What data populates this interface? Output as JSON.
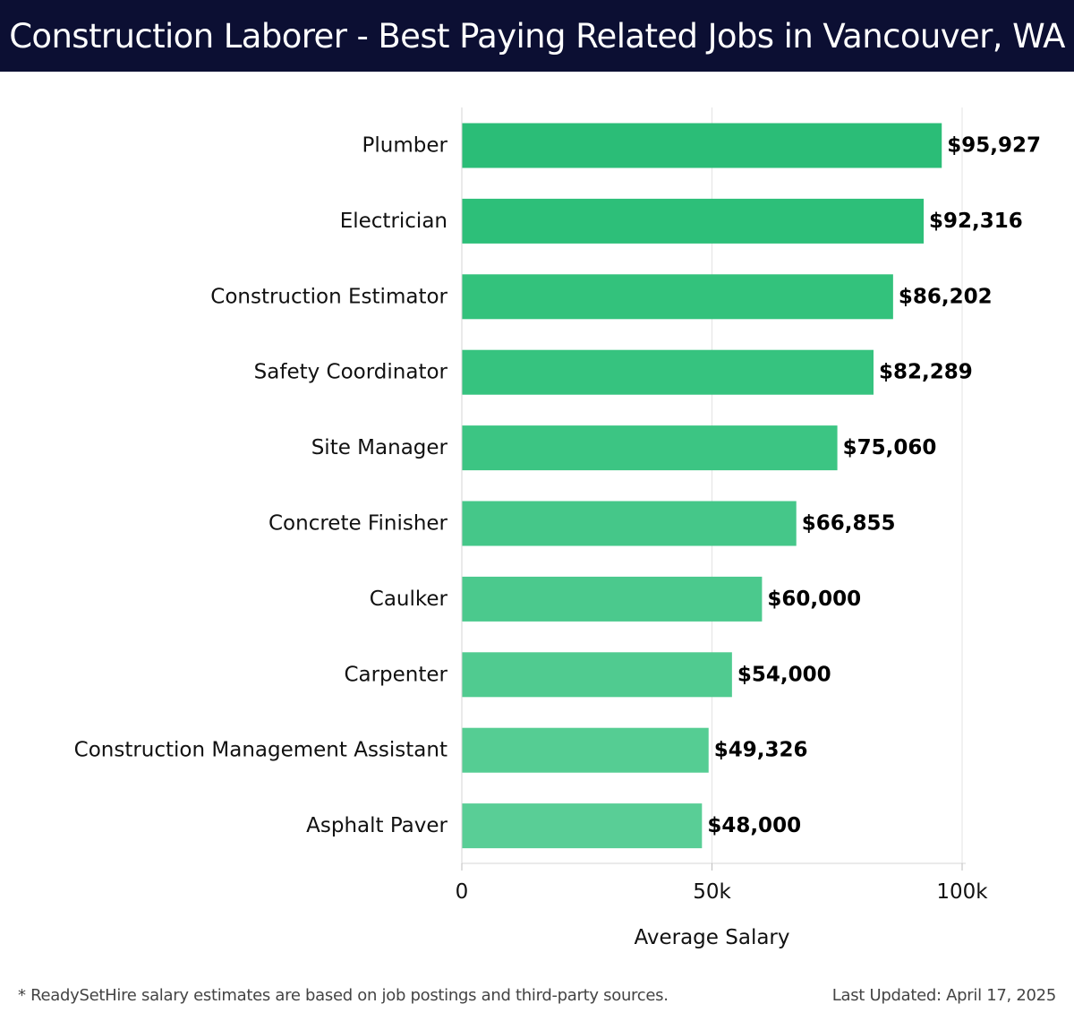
{
  "header": {
    "title": "Construction Laborer - Best Paying Related Jobs in Vancouver, WA"
  },
  "chart_data": {
    "type": "bar",
    "orientation": "horizontal",
    "title": "Construction Laborer - Best Paying Related Jobs in Vancouver, WA",
    "xlabel": "Average Salary",
    "ylabel": "",
    "xlim": [
      0,
      100000
    ],
    "grid": true,
    "categories": [
      "Plumber",
      "Electrician",
      "Construction Estimator",
      "Safety Coordinator",
      "Site Manager",
      "Concrete Finisher",
      "Caulker",
      "Carpenter",
      "Construction Management Assistant",
      "Asphalt Paver"
    ],
    "values": [
      95927,
      92316,
      86202,
      82289,
      75060,
      66855,
      60000,
      54000,
      49326,
      48000
    ],
    "value_labels": [
      "$95,927",
      "$92,316",
      "$86,202",
      "$82,289",
      "$75,060",
      "$66,855",
      "$60,000",
      "$54,000",
      "$49,326",
      "$48,000"
    ],
    "ticks": [
      {
        "value": 0,
        "label": "0"
      },
      {
        "value": 50000,
        "label": "50k"
      },
      {
        "value": 100000,
        "label": "100k"
      }
    ],
    "bar_colors": [
      "#2bbd77",
      "#2dbf79",
      "#33c27c",
      "#36c37f",
      "#3cc583",
      "#45c789",
      "#4bc98d",
      "#50cb90",
      "#55cd93",
      "#59ce96"
    ]
  },
  "footer": {
    "note": "* ReadySetHire salary estimates are based on job postings and third-party sources.",
    "updated": "Last Updated: April 17, 2025"
  }
}
